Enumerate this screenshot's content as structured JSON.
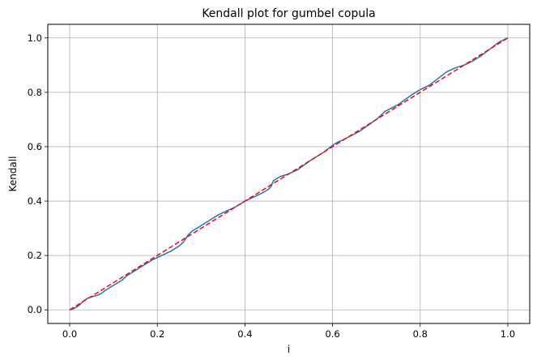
{
  "chart_data": {
    "type": "line",
    "title": "Kendall plot for gumbel copula",
    "xlabel": "i",
    "ylabel": "Kendall",
    "xlim": [
      -0.05,
      1.05
    ],
    "ylim": [
      -0.05,
      1.05
    ],
    "grid": true,
    "x_ticks": [
      0.0,
      0.2,
      0.4,
      0.6,
      0.8,
      1.0
    ],
    "y_ticks": [
      0.0,
      0.2,
      0.4,
      0.6,
      0.8,
      1.0
    ],
    "x_tick_labels": [
      "0.0",
      "0.2",
      "0.4",
      "0.6",
      "0.8",
      "1.0"
    ],
    "y_tick_labels": [
      "0.0",
      "0.2",
      "0.4",
      "0.6",
      "0.8",
      "1.0"
    ],
    "series": [
      {
        "color": "#1f77b4",
        "style": "solid",
        "x": [
          0.0,
          0.01,
          0.02,
          0.03,
          0.04,
          0.05,
          0.06,
          0.07,
          0.08,
          0.1,
          0.12,
          0.13,
          0.15,
          0.17,
          0.19,
          0.21,
          0.23,
          0.25,
          0.26,
          0.27,
          0.28,
          0.3,
          0.32,
          0.34,
          0.36,
          0.38,
          0.4,
          0.42,
          0.44,
          0.455,
          0.46,
          0.465,
          0.48,
          0.5,
          0.52,
          0.55,
          0.58,
          0.6,
          0.61,
          0.63,
          0.66,
          0.7,
          0.72,
          0.75,
          0.78,
          0.8,
          0.82,
          0.84,
          0.86,
          0.88,
          0.9,
          0.92,
          0.94,
          0.96,
          0.98,
          1.0
        ],
        "y": [
          0.0,
          0.005,
          0.015,
          0.03,
          0.042,
          0.048,
          0.052,
          0.058,
          0.07,
          0.09,
          0.11,
          0.125,
          0.145,
          0.165,
          0.185,
          0.2,
          0.215,
          0.235,
          0.25,
          0.275,
          0.29,
          0.31,
          0.33,
          0.35,
          0.365,
          0.38,
          0.4,
          0.415,
          0.43,
          0.445,
          0.455,
          0.475,
          0.49,
          0.5,
          0.515,
          0.55,
          0.58,
          0.605,
          0.615,
          0.63,
          0.655,
          0.7,
          0.73,
          0.755,
          0.79,
          0.81,
          0.825,
          0.85,
          0.875,
          0.89,
          0.9,
          0.915,
          0.935,
          0.96,
          0.985,
          1.0
        ]
      },
      {
        "color": "#ff0000",
        "style": "dashed",
        "x": [
          0.0,
          1.0
        ],
        "y": [
          0.0,
          1.0
        ]
      }
    ]
  }
}
